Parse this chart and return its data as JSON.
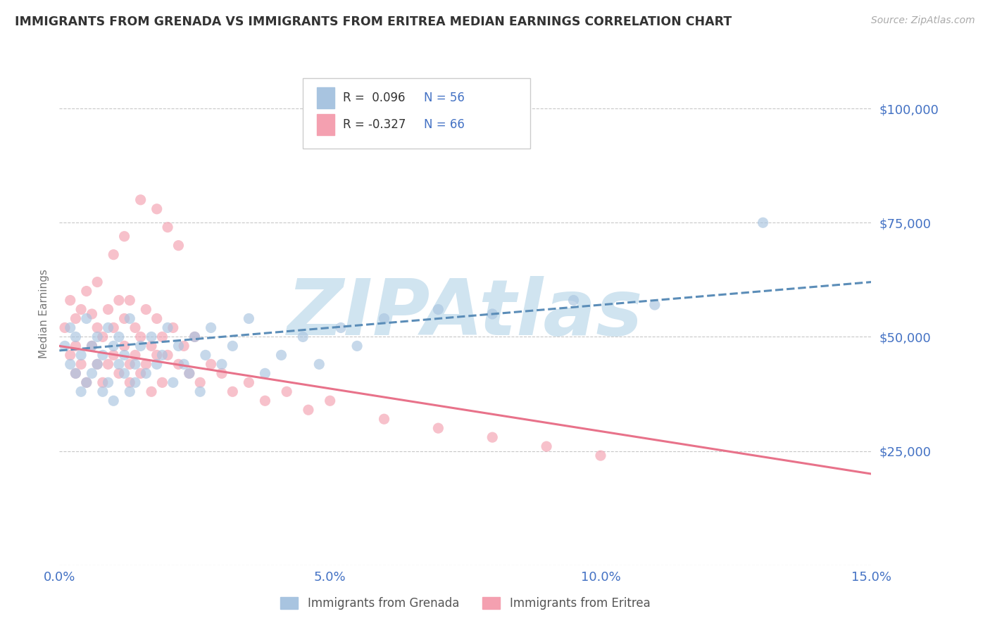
{
  "title": "IMMIGRANTS FROM GRENADA VS IMMIGRANTS FROM ERITREA MEDIAN EARNINGS CORRELATION CHART",
  "source": "Source: ZipAtlas.com",
  "ylabel": "Median Earnings",
  "xlim": [
    0.0,
    0.15
  ],
  "ylim": [
    0,
    110000
  ],
  "xticks": [
    0.0,
    0.05,
    0.1,
    0.15
  ],
  "xticklabels": [
    "0.0%",
    "5.0%",
    "10.0%",
    "15.0%"
  ],
  "yticks": [
    0,
    25000,
    50000,
    75000,
    100000
  ],
  "yticklabels": [
    "",
    "$25,000",
    "$50,000",
    "$75,000",
    "$100,000"
  ],
  "grenada_color": "#a8c4e0",
  "eritrea_color": "#f4a0b0",
  "grenada_R": 0.096,
  "grenada_N": 56,
  "eritrea_R": -0.327,
  "eritrea_N": 66,
  "grenada_line_color": "#5b8db8",
  "eritrea_line_color": "#e8728a",
  "watermark_text": "ZIPAtlas",
  "watermark_color": "#d0e4f0",
  "legend_label_grenada": "Immigrants from Grenada",
  "legend_label_eritrea": "Immigrants from Eritrea",
  "background_color": "#ffffff",
  "grid_color": "#c8c8c8",
  "title_color": "#333333",
  "axis_label_color": "#777777",
  "tick_color": "#4472c4",
  "legend_text_color": "#333333",
  "legend_r_color": "#4472c4",
  "grenada_line_y0": 47000,
  "grenada_line_y1": 62000,
  "eritrea_line_y0": 48000,
  "eritrea_line_y1": 20000,
  "grenada_scatter_x": [
    0.001,
    0.002,
    0.002,
    0.003,
    0.003,
    0.004,
    0.004,
    0.005,
    0.005,
    0.006,
    0.006,
    0.007,
    0.007,
    0.008,
    0.008,
    0.009,
    0.009,
    0.01,
    0.01,
    0.011,
    0.011,
    0.012,
    0.012,
    0.013,
    0.013,
    0.014,
    0.014,
    0.015,
    0.016,
    0.017,
    0.018,
    0.019,
    0.02,
    0.021,
    0.022,
    0.023,
    0.024,
    0.025,
    0.026,
    0.027,
    0.028,
    0.03,
    0.032,
    0.035,
    0.038,
    0.041,
    0.045,
    0.048,
    0.052,
    0.055,
    0.06,
    0.07,
    0.08,
    0.095,
    0.11,
    0.13
  ],
  "grenada_scatter_y": [
    48000,
    52000,
    44000,
    50000,
    42000,
    46000,
    38000,
    54000,
    40000,
    48000,
    42000,
    50000,
    44000,
    46000,
    38000,
    52000,
    40000,
    48000,
    36000,
    44000,
    50000,
    42000,
    46000,
    38000,
    54000,
    44000,
    40000,
    48000,
    42000,
    50000,
    44000,
    46000,
    52000,
    40000,
    48000,
    44000,
    42000,
    50000,
    38000,
    46000,
    52000,
    44000,
    48000,
    54000,
    42000,
    46000,
    50000,
    44000,
    52000,
    48000,
    54000,
    56000,
    55000,
    58000,
    57000,
    75000
  ],
  "eritrea_scatter_x": [
    0.001,
    0.002,
    0.002,
    0.003,
    0.003,
    0.003,
    0.004,
    0.004,
    0.005,
    0.005,
    0.006,
    0.006,
    0.007,
    0.007,
    0.007,
    0.008,
    0.008,
    0.009,
    0.009,
    0.01,
    0.01,
    0.011,
    0.011,
    0.012,
    0.012,
    0.013,
    0.013,
    0.013,
    0.014,
    0.014,
    0.015,
    0.015,
    0.016,
    0.016,
    0.017,
    0.017,
    0.018,
    0.018,
    0.019,
    0.019,
    0.02,
    0.021,
    0.022,
    0.023,
    0.024,
    0.025,
    0.026,
    0.028,
    0.03,
    0.032,
    0.035,
    0.038,
    0.042,
    0.046,
    0.05,
    0.06,
    0.07,
    0.08,
    0.09,
    0.1,
    0.01,
    0.012,
    0.015,
    0.018,
    0.02,
    0.022
  ],
  "eritrea_scatter_y": [
    52000,
    58000,
    46000,
    54000,
    48000,
    42000,
    56000,
    44000,
    60000,
    40000,
    55000,
    48000,
    52000,
    44000,
    62000,
    50000,
    40000,
    56000,
    44000,
    52000,
    46000,
    58000,
    42000,
    54000,
    48000,
    44000,
    58000,
    40000,
    52000,
    46000,
    50000,
    42000,
    56000,
    44000,
    48000,
    38000,
    54000,
    46000,
    50000,
    40000,
    46000,
    52000,
    44000,
    48000,
    42000,
    50000,
    40000,
    44000,
    42000,
    38000,
    40000,
    36000,
    38000,
    34000,
    36000,
    32000,
    30000,
    28000,
    26000,
    24000,
    68000,
    72000,
    80000,
    78000,
    74000,
    70000
  ]
}
